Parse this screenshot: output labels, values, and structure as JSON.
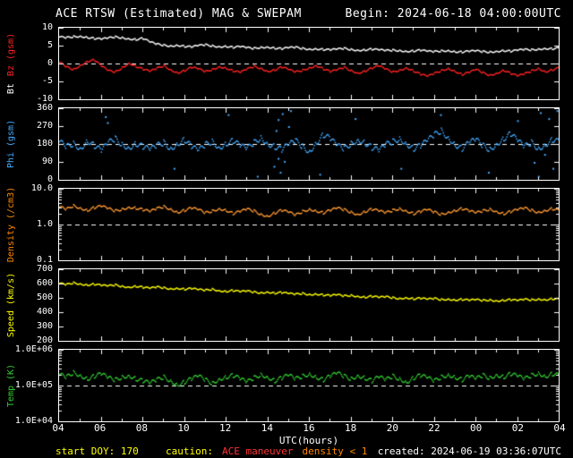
{
  "header": {
    "title": "ACE RTSW (Estimated) MAG & SWEPAM",
    "begin": "Begin: 2024-06-18 04:00:00UTC"
  },
  "footer": {
    "start_doy": "start DOY: 170",
    "caution_label": "caution:",
    "caution_maneuver": "ACE maneuver",
    "caution_density": "density < 1",
    "created": "created: 2024-06-19 03:36:07UTC"
  },
  "colors": {
    "background": "#000000",
    "frame": "#ffffff",
    "bt": "#ffffff",
    "bz": "#ff2222",
    "phi": "#44aaff",
    "density": "#ff9933",
    "speed": "#ffff00",
    "temp": "#33cc33",
    "yellow": "#ffff00",
    "red": "#ff3333",
    "orange": "#ff8800",
    "white": "#ffffff"
  },
  "chart_data": {
    "type": "scatter",
    "title": "ACE RTSW (Estimated) MAG & SWEPAM",
    "begin": "2024-06-18 04:00:00UTC",
    "x": {
      "label": "UTC(hours)",
      "start_hour": 4,
      "end_hour": 28,
      "tick_labels": [
        "04",
        "06",
        "08",
        "10",
        "12",
        "14",
        "16",
        "18",
        "20",
        "22",
        "00",
        "02",
        "04"
      ]
    },
    "panels": [
      {
        "id": "mag",
        "axis_labels": [
          {
            "text": "Bt",
            "color": "#ffffff"
          },
          {
            "text": "Bz (gsm)",
            "color": "#ff2222"
          }
        ],
        "ylim": [
          -10,
          10
        ],
        "scale": "linear",
        "yticks": [
          10,
          5,
          0,
          -5,
          -10
        ],
        "ytick_labels": [
          "10",
          "5",
          "0",
          "-5",
          "-10"
        ],
        "dashed_at": 0,
        "series": [
          {
            "name": "Bt",
            "color": "#ffffff",
            "values": [
              7.6,
              7.4,
              7.7,
              7.8,
              7.5,
              7.2,
              7.0,
              7.3,
              7.6,
              7.4,
              7.1,
              6.9,
              7.2,
              6.2,
              5.6,
              5.3,
              5.1,
              5.3,
              5.0,
              4.8,
              5.2,
              5.4,
              5.1,
              4.9,
              5.0,
              4.7,
              4.9,
              4.6,
              4.4,
              4.7,
              4.8,
              4.5,
              4.3,
              4.6,
              4.7,
              4.4,
              4.2,
              4.3,
              4.1,
              4.0,
              4.2,
              4.4,
              4.1,
              3.9,
              4.0,
              4.2,
              4.0,
              3.8,
              3.9,
              3.8,
              3.6,
              3.7,
              3.9,
              3.6,
              3.5,
              3.7,
              3.8,
              3.5,
              3.4,
              3.6,
              3.7,
              3.5,
              3.4,
              3.6,
              3.8,
              3.6,
              3.9,
              4.1,
              4.0,
              4.2,
              4.4,
              4.3,
              4.5
            ]
          },
          {
            "name": "Bz",
            "color": "#ff2222",
            "values": [
              0.5,
              -0.8,
              -1.5,
              -0.3,
              0.8,
              1.2,
              -0.5,
              -1.8,
              -2.2,
              -1.0,
              0.3,
              -0.6,
              -1.4,
              -2.0,
              -1.2,
              -0.4,
              -1.6,
              -2.4,
              -1.8,
              -0.9,
              -1.3,
              -2.1,
              -1.5,
              -0.7,
              -1.1,
              -1.9,
              -2.3,
              -1.4,
              -0.6,
              -1.2,
              -2.0,
              -1.6,
              -0.8,
              -1.5,
              -2.2,
              -1.7,
              -1.0,
              -0.4,
              -1.3,
              -2.1,
              -1.6,
              -0.9,
              -1.8,
              -2.5,
              -1.9,
              -1.1,
              -0.5,
              -1.4,
              -2.2,
              -1.7,
              -1.0,
              -1.9,
              -2.8,
              -3.4,
              -2.6,
              -1.8,
              -1.2,
              -2.0,
              -2.9,
              -2.3,
              -1.5,
              -2.4,
              -3.1,
              -2.5,
              -1.7,
              -2.6,
              -3.3,
              -2.7,
              -1.9,
              -1.2,
              -2.1,
              -1.6,
              -1.0
            ]
          }
        ]
      },
      {
        "id": "phi",
        "axis_labels": [
          {
            "text": "Phi (gsm)",
            "color": "#44aaff"
          }
        ],
        "ylim": [
          0,
          360
        ],
        "scale": "linear",
        "yticks": [
          360,
          270,
          180,
          90,
          0
        ],
        "ytick_labels": [
          "360",
          "270",
          "180",
          "90",
          "0"
        ],
        "dashed_at": 180,
        "series": [
          {
            "name": "Phi",
            "color": "#44aaff",
            "values": [
              195,
              170,
              185,
              160,
              200,
              175,
              150,
              190,
              210,
              180,
              165,
              185,
              170,
              155,
              175,
              190,
              160,
              185,
              205,
              170,
              150,
              180,
              195,
              165,
              185,
              200,
              175,
              160,
              190,
              215,
              185,
              170,
              155,
              180,
              200,
              170,
              145,
              190,
              230,
              210,
              175,
              160,
              185,
              205,
              190,
              165,
              150,
              180,
              195,
              210,
              185,
              160,
              175,
              200,
              230,
              250,
              215,
              180,
              160,
              190,
              205,
              175,
              155,
              185,
              210,
              235,
              200,
              170,
              190,
              160,
              180,
              205,
              195
            ],
            "outliers": [
              [
                6.2,
                320
              ],
              [
                6.3,
                290
              ],
              [
                9.5,
                60
              ],
              [
                12.1,
                330
              ],
              [
                13.5,
                20
              ],
              [
                14.3,
                70
              ],
              [
                14.4,
                250
              ],
              [
                14.5,
                110
              ],
              [
                14.5,
                305
              ],
              [
                14.6,
                40
              ],
              [
                14.7,
                335
              ],
              [
                14.8,
                95
              ],
              [
                15.0,
                270
              ],
              [
                15.1,
                350
              ],
              [
                16.5,
                30
              ],
              [
                18.2,
                310
              ],
              [
                20.4,
                60
              ],
              [
                22.3,
                330
              ],
              [
                24.6,
                40
              ],
              [
                26.0,
                300
              ],
              [
                26.8,
                90
              ],
              [
                27.0,
                20
              ],
              [
                27.1,
                340
              ],
              [
                27.3,
                130
              ],
              [
                27.5,
                310
              ],
              [
                27.7,
                60
              ],
              [
                27.9,
                350
              ],
              [
                28.0,
                240
              ]
            ]
          }
        ]
      },
      {
        "id": "density",
        "axis_labels": [
          {
            "text": "Density (/cm3)",
            "color": "#ff8800"
          }
        ],
        "ylim": [
          0.1,
          10
        ],
        "scale": "log",
        "yticks": [
          10,
          1,
          0.1
        ],
        "ytick_labels": [
          "10.0",
          "1.0",
          "0.1"
        ],
        "dashed_at": 1,
        "series": [
          {
            "name": "Density",
            "color": "#ff9933",
            "values": [
              3.2,
              2.8,
              3.5,
              3.0,
              2.6,
              3.1,
              3.4,
              2.9,
              2.5,
              2.8,
              3.2,
              3.0,
              2.7,
              2.4,
              2.9,
              3.3,
              2.8,
              2.3,
              2.6,
              3.0,
              2.7,
              2.2,
              2.5,
              2.9,
              2.6,
              2.1,
              2.4,
              2.8,
              2.5,
              2.0,
              1.8,
              2.2,
              2.6,
              2.3,
              1.9,
              2.4,
              2.8,
              2.5,
              2.2,
              2.6,
              3.0,
              2.7,
              2.3,
              2.0,
              2.4,
              2.8,
              2.5,
              2.2,
              2.6,
              2.9,
              2.5,
              2.1,
              2.4,
              2.7,
              2.3,
              2.0,
              2.3,
              2.6,
              2.9,
              2.5,
              2.2,
              2.5,
              2.8,
              2.4,
              2.1,
              2.4,
              2.7,
              3.0,
              2.6,
              2.3,
              2.6,
              2.9,
              2.5
            ]
          }
        ]
      },
      {
        "id": "speed",
        "axis_labels": [
          {
            "text": "Speed (km/s)",
            "color": "#ffff00"
          }
        ],
        "ylim": [
          200,
          700
        ],
        "scale": "linear",
        "yticks": [
          700,
          600,
          500,
          400,
          300,
          200
        ],
        "ytick_labels": [
          "700",
          "600",
          "500",
          "400",
          "300",
          "200"
        ],
        "dashed_at": null,
        "series": [
          {
            "name": "Speed",
            "color": "#ffff00",
            "values": [
              605,
              598,
              610,
              602,
              595,
              600,
              592,
              588,
              595,
              585,
              580,
              586,
              578,
              572,
              580,
              575,
              568,
              572,
              565,
              570,
              562,
              558,
              565,
              555,
              550,
              556,
              548,
              552,
              545,
              540,
              546,
              538,
              542,
              535,
              530,
              536,
              528,
              532,
              525,
              520,
              526,
              518,
              522,
              515,
              510,
              516,
              508,
              512,
              505,
              500,
              506,
              498,
              502,
              495,
              500,
              492,
              496,
              490,
              494,
              488,
              492,
              486,
              490,
              484,
              488,
              492,
              486,
              494,
              490,
              496,
              492,
              498,
              495
            ]
          }
        ]
      },
      {
        "id": "temp",
        "axis_labels": [
          {
            "text": "Temp (K)",
            "color": "#33cc33"
          }
        ],
        "ylim": [
          10000.0,
          1000000.0
        ],
        "scale": "log",
        "yticks": [
          1000000.0,
          100000.0,
          10000.0
        ],
        "ytick_labels": [
          "1.0E+06",
          "1.0E+05",
          "1.0E+04"
        ],
        "dashed_at": 100000.0,
        "series": [
          {
            "name": "Temp",
            "color": "#33cc33",
            "values": [
              210000.0,
              180000.0,
              240000.0,
              200000.0,
              160000.0,
              190000.0,
              220000.0,
              170000.0,
              150000.0,
              180000.0,
              200000.0,
              160000.0,
              140000.0,
              120000.0,
              150000.0,
              180000.0,
              140000.0,
              110000.0,
              130000.0,
              160000.0,
              190000.0,
              150000.0,
              120000.0,
              160000.0,
              180000.0,
              200000.0,
              160000.0,
              130000.0,
              170000.0,
              210000.0,
              180000.0,
              140000.0,
              170000.0,
              200000.0,
              160000.0,
              190000.0,
              220000.0,
              180000.0,
              150000.0,
              190000.0,
              230000.0,
              190000.0,
              160000.0,
              200000.0,
              170000.0,
              140000.0,
              180000.0,
              150000.0,
              190000.0,
              160000.0,
              130000.0,
              170000.0,
              200000.0,
              170000.0,
              140000.0,
              180000.0,
              210000.0,
              180000.0,
              150000.0,
              190000.0,
              160000.0,
              200000.0,
              170000.0,
              210000.0,
              180000.0,
              220000.0,
              190000.0,
              160000.0,
              200000.0,
              230000.0,
              190000.0,
              220000.0,
              200000.0
            ]
          }
        ]
      }
    ]
  }
}
